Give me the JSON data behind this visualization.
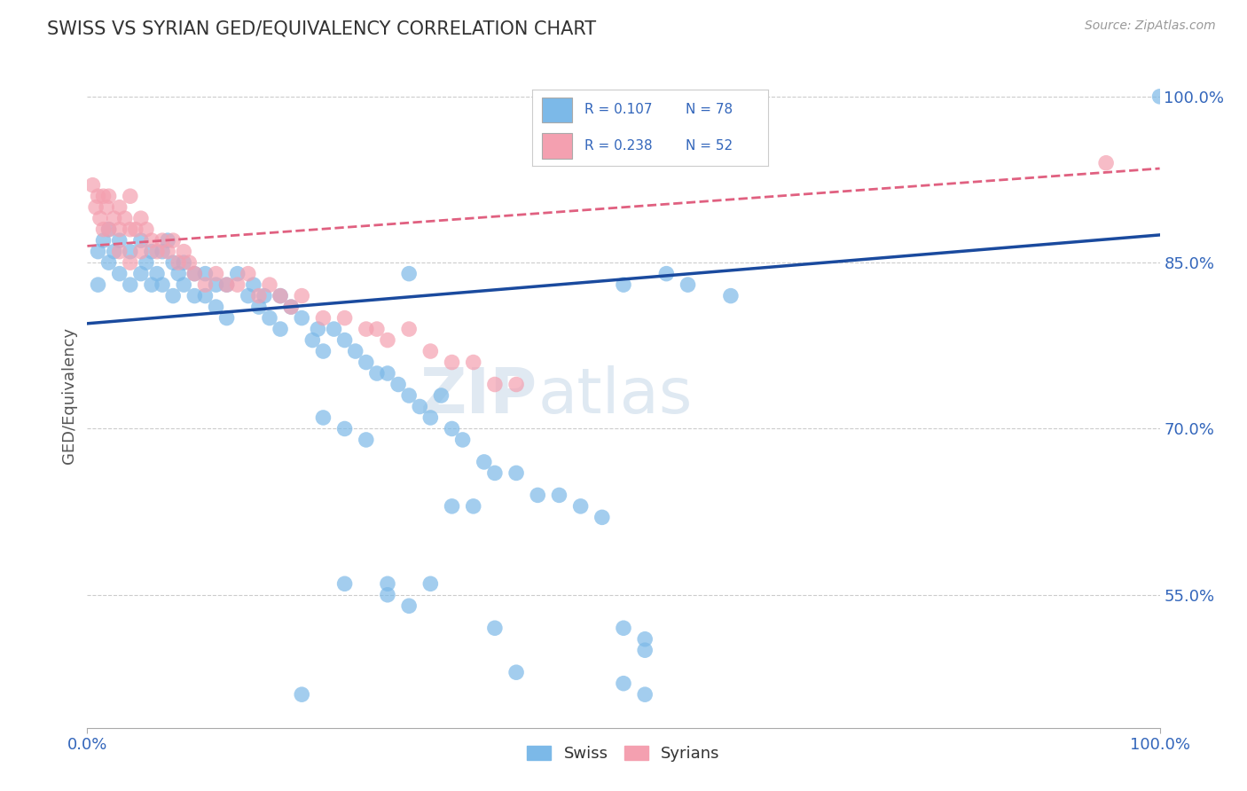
{
  "title": "SWISS VS SYRIAN GED/EQUIVALENCY CORRELATION CHART",
  "source": "Source: ZipAtlas.com",
  "ylabel": "GED/Equivalency",
  "watermark_zip": "ZIP",
  "watermark_atlas": "atlas",
  "swiss_color": "#7cb9e8",
  "syrian_color": "#f4a0b0",
  "swiss_line_color": "#1a4a9e",
  "syrian_line_color": "#e06080",
  "background_color": "#ffffff",
  "legend_r_swiss": "R = 0.107",
  "legend_n_swiss": "N = 78",
  "legend_r_syrians": "R = 0.238",
  "legend_n_syrians": "N = 52",
  "legend_swiss": "Swiss",
  "legend_syrians": "Syrians",
  "ytick_values": [
    0.55,
    0.7,
    0.85,
    1.0
  ],
  "ytick_labels": [
    "55.0%",
    "70.0%",
    "85.0%",
    "100.0%"
  ],
  "swiss_x": [
    0.01,
    0.01,
    0.015,
    0.02,
    0.02,
    0.025,
    0.03,
    0.03,
    0.04,
    0.04,
    0.05,
    0.05,
    0.055,
    0.06,
    0.06,
    0.065,
    0.07,
    0.07,
    0.075,
    0.08,
    0.08,
    0.085,
    0.09,
    0.09,
    0.1,
    0.1,
    0.11,
    0.11,
    0.12,
    0.12,
    0.13,
    0.13,
    0.14,
    0.15,
    0.155,
    0.16,
    0.165,
    0.17,
    0.18,
    0.18,
    0.19,
    0.2,
    0.21,
    0.215,
    0.22,
    0.23,
    0.24,
    0.25,
    0.26,
    0.27,
    0.28,
    0.29,
    0.3,
    0.31,
    0.32,
    0.33,
    0.34,
    0.35,
    0.37,
    0.38,
    0.4,
    0.42,
    0.44,
    0.46,
    0.48,
    0.5,
    0.52,
    0.54,
    0.56,
    0.6,
    0.3,
    0.22,
    0.24,
    0.26,
    0.5,
    0.52,
    0.2,
    1.0
  ],
  "swiss_y": [
    0.86,
    0.83,
    0.87,
    0.88,
    0.85,
    0.86,
    0.87,
    0.84,
    0.86,
    0.83,
    0.87,
    0.84,
    0.85,
    0.86,
    0.83,
    0.84,
    0.86,
    0.83,
    0.87,
    0.85,
    0.82,
    0.84,
    0.85,
    0.83,
    0.84,
    0.82,
    0.84,
    0.82,
    0.83,
    0.81,
    0.83,
    0.8,
    0.84,
    0.82,
    0.83,
    0.81,
    0.82,
    0.8,
    0.82,
    0.79,
    0.81,
    0.8,
    0.78,
    0.79,
    0.77,
    0.79,
    0.78,
    0.77,
    0.76,
    0.75,
    0.75,
    0.74,
    0.73,
    0.72,
    0.71,
    0.73,
    0.7,
    0.69,
    0.67,
    0.66,
    0.66,
    0.64,
    0.64,
    0.63,
    0.62,
    0.83,
    0.51,
    0.84,
    0.83,
    0.82,
    0.84,
    0.71,
    0.7,
    0.69,
    0.52,
    0.5,
    0.46,
    1.0
  ],
  "swiss_x_low": [
    0.24,
    0.28,
    0.28,
    0.3,
    0.32,
    0.34,
    0.36,
    0.38,
    0.4,
    0.5,
    0.52
  ],
  "swiss_y_low": [
    0.56,
    0.56,
    0.55,
    0.54,
    0.56,
    0.63,
    0.63,
    0.52,
    0.48,
    0.47,
    0.46
  ],
  "syrian_x": [
    0.005,
    0.008,
    0.01,
    0.012,
    0.015,
    0.015,
    0.018,
    0.02,
    0.02,
    0.025,
    0.03,
    0.03,
    0.03,
    0.035,
    0.04,
    0.04,
    0.04,
    0.045,
    0.05,
    0.05,
    0.055,
    0.06,
    0.065,
    0.07,
    0.075,
    0.08,
    0.085,
    0.09,
    0.095,
    0.1,
    0.11,
    0.12,
    0.13,
    0.14,
    0.15,
    0.16,
    0.17,
    0.18,
    0.19,
    0.2,
    0.22,
    0.24,
    0.26,
    0.27,
    0.28,
    0.3,
    0.32,
    0.34,
    0.36,
    0.4,
    0.95,
    0.38
  ],
  "syrian_y": [
    0.92,
    0.9,
    0.91,
    0.89,
    0.91,
    0.88,
    0.9,
    0.91,
    0.88,
    0.89,
    0.9,
    0.88,
    0.86,
    0.89,
    0.91,
    0.88,
    0.85,
    0.88,
    0.89,
    0.86,
    0.88,
    0.87,
    0.86,
    0.87,
    0.86,
    0.87,
    0.85,
    0.86,
    0.85,
    0.84,
    0.83,
    0.84,
    0.83,
    0.83,
    0.84,
    0.82,
    0.83,
    0.82,
    0.81,
    0.82,
    0.8,
    0.8,
    0.79,
    0.79,
    0.78,
    0.79,
    0.77,
    0.76,
    0.76,
    0.74,
    0.94,
    0.74
  ]
}
